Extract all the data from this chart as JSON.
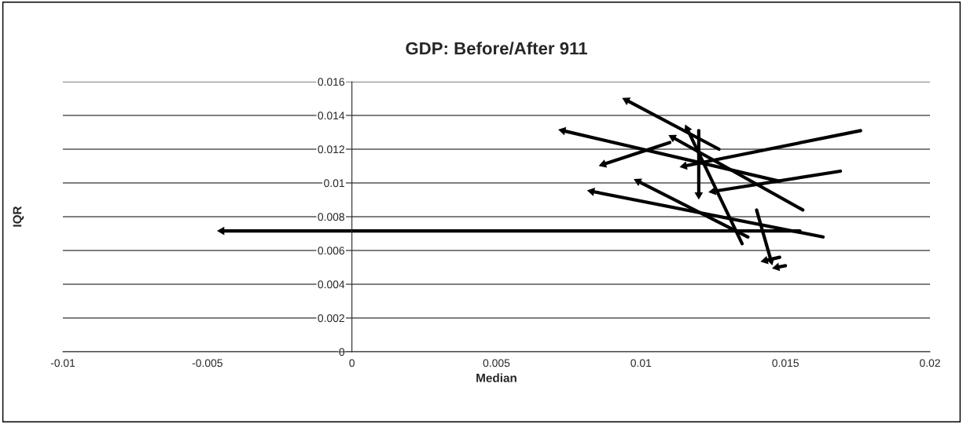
{
  "chart_data": {
    "type": "line",
    "title": "GDP: Before/After 911",
    "xlabel": "Median",
    "ylabel": "IQR",
    "xlim": [
      -0.01,
      0.02
    ],
    "xticks": [
      -0.01,
      -0.005,
      0,
      0.005,
      0.01,
      0.015,
      0.02
    ],
    "ylim": [
      0,
      0.016
    ],
    "yticks": [
      0,
      0.002,
      0.004,
      0.006,
      0.008,
      0.01,
      0.012,
      0.014,
      0.016
    ],
    "grid": "y",
    "legend": false,
    "series": [
      {
        "color": "#000000",
        "x": [
          0.0155,
          -0.0045
        ],
        "values": [
          0.00716,
          0.00716
        ]
      },
      {
        "color": "#000000",
        "x": [
          0.0127,
          0.0095
        ],
        "values": [
          0.012,
          0.0149
        ]
      },
      {
        "color": "#000000",
        "x": [
          0.0148,
          0.0073
        ],
        "values": [
          0.0101,
          0.0131
        ]
      },
      {
        "color": "#000000",
        "x": [
          0.011,
          0.0087
        ],
        "values": [
          0.0124,
          0.0111
        ]
      },
      {
        "color": "#000000",
        "x": [
          0.012,
          0.012
        ],
        "values": [
          0.0131,
          0.0093
        ]
      },
      {
        "color": "#000000",
        "x": [
          0.0156,
          0.0111
        ],
        "values": [
          0.0084,
          0.0127
        ]
      },
      {
        "color": "#000000",
        "x": [
          0.0135,
          0.0116
        ],
        "values": [
          0.0064,
          0.0132
        ]
      },
      {
        "color": "#000000",
        "x": [
          0.0176,
          0.0115
        ],
        "values": [
          0.0131,
          0.011
        ]
      },
      {
        "color": "#000000",
        "x": [
          0.0169,
          0.0125
        ],
        "values": [
          0.0107,
          0.0095
        ]
      },
      {
        "color": "#000000",
        "x": [
          0.0137,
          0.0099
        ],
        "values": [
          0.0068,
          0.0101
        ]
      },
      {
        "color": "#000000",
        "x": [
          0.0163,
          0.0083
        ],
        "values": [
          0.0068,
          0.0095
        ]
      },
      {
        "color": "#000000",
        "x": [
          0.014,
          0.0145
        ],
        "values": [
          0.0084,
          0.0054
        ]
      },
      {
        "color": "#000000",
        "x": [
          0.0148,
          0.0143
        ],
        "values": [
          0.0056,
          0.0054
        ]
      },
      {
        "color": "#000000",
        "x": [
          0.015,
          0.0147
        ],
        "values": [
          0.0051,
          0.005
        ]
      }
    ]
  }
}
